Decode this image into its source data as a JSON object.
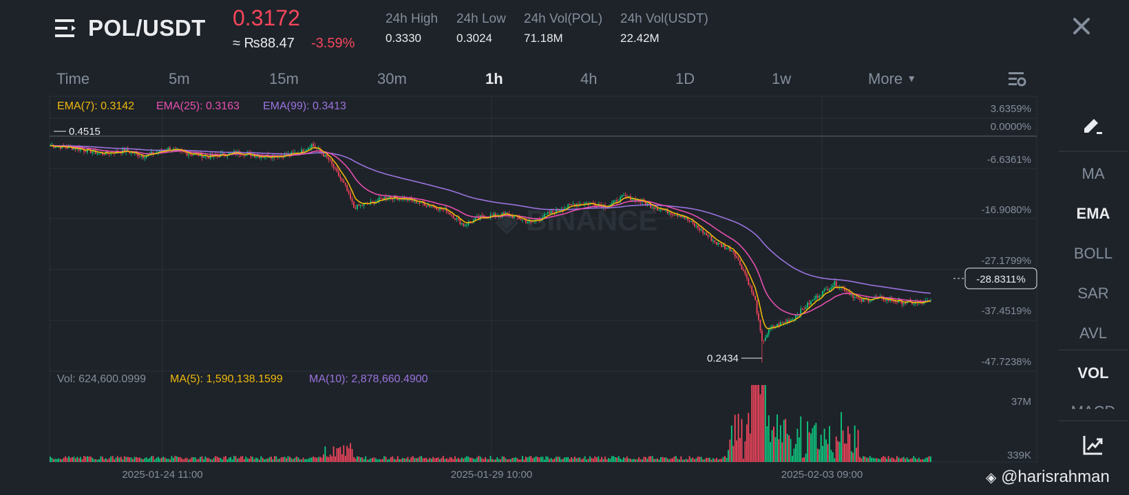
{
  "header": {
    "pair": "POL/USDT",
    "last_price": "0.3172",
    "fiat_price": "≈ ₨88.47",
    "change_pct": "-3.59%",
    "stats": [
      {
        "label": "24h High",
        "value": "0.3330"
      },
      {
        "label": "24h Low",
        "value": "0.3024"
      },
      {
        "label": "24h Vol(POL)",
        "value": "71.18M"
      },
      {
        "label": "24h Vol(USDT)",
        "value": "22.42M"
      }
    ]
  },
  "timeframes": {
    "tabs": [
      "Time",
      "5m",
      "15m",
      "30m",
      "1h",
      "4h",
      "1D",
      "1w"
    ],
    "active": "1h",
    "more_label": "More"
  },
  "toolbar": {
    "indicators": [
      "MA",
      "EMA",
      "BOLL",
      "SAR",
      "AVL",
      "VOL",
      "MACD"
    ],
    "active": [
      "EMA",
      "VOL"
    ]
  },
  "legend": {
    "ema7": "EMA(7): 0.3142",
    "ema25": "EMA(25): 0.3163",
    "ema99": "EMA(99): 0.3413",
    "vol": "Vol: 624,600.0999",
    "vol_ma5": "MA(5): 1,590,138.1599",
    "vol_ma10": "MA(10): 2,878,660.4900"
  },
  "colors": {
    "up": "#0ecb81",
    "down": "#f6465d",
    "ema7": "#f0b90b",
    "ema25": "#e84fb1",
    "ema99": "#9b74e0",
    "grid": "#2b3139"
  },
  "watermark": {
    "brand": "BINANCE",
    "user": "@harisrahman"
  },
  "chart_data": {
    "type": "candlestick",
    "price_axis_pct": [
      "3.6359%",
      "0.0000%",
      "-6.6361%",
      "-16.9080%",
      "-27.1799%",
      "-37.4519%",
      "-47.7238%"
    ],
    "current_pct_label": "-28.8311%",
    "reference_price": 0.4515,
    "max_label": "0.4515",
    "min_label": "0.2434",
    "x_tick_labels": [
      "2025-01-24 11:00",
      "2025-01-29 10:00",
      "2025-02-03 09:00"
    ],
    "volume_axis": [
      "37M",
      "339K"
    ],
    "price_path": [
      [
        0,
        0.4428
      ],
      [
        15,
        0.4405
      ],
      [
        30,
        0.4355
      ],
      [
        45,
        0.438
      ],
      [
        55,
        0.433
      ],
      [
        70,
        0.44
      ],
      [
        80,
        0.436
      ],
      [
        95,
        0.4325
      ],
      [
        110,
        0.4365
      ],
      [
        125,
        0.433
      ],
      [
        140,
        0.434
      ],
      [
        150,
        0.438
      ],
      [
        155,
        0.444
      ],
      [
        165,
        0.43
      ],
      [
        175,
        0.405
      ],
      [
        180,
        0.386
      ],
      [
        190,
        0.39
      ],
      [
        200,
        0.396
      ],
      [
        210,
        0.394
      ],
      [
        220,
        0.39
      ],
      [
        235,
        0.383
      ],
      [
        245,
        0.37
      ],
      [
        255,
        0.377
      ],
      [
        270,
        0.38
      ],
      [
        285,
        0.372
      ],
      [
        295,
        0.38
      ],
      [
        310,
        0.389
      ],
      [
        320,
        0.39
      ],
      [
        330,
        0.387
      ],
      [
        340,
        0.396
      ],
      [
        350,
        0.392
      ],
      [
        360,
        0.385
      ],
      [
        375,
        0.378
      ],
      [
        385,
        0.366
      ],
      [
        395,
        0.353
      ],
      [
        405,
        0.346
      ],
      [
        412,
        0.325
      ],
      [
        418,
        0.3
      ],
      [
        422,
        0.262
      ],
      [
        427,
        0.275
      ],
      [
        440,
        0.284
      ],
      [
        455,
        0.305
      ],
      [
        465,
        0.316
      ],
      [
        470,
        0.312
      ],
      [
        480,
        0.3
      ],
      [
        490,
        0.303
      ],
      [
        505,
        0.299
      ],
      [
        515,
        0.298
      ],
      [
        522,
        0.3
      ]
    ]
  }
}
